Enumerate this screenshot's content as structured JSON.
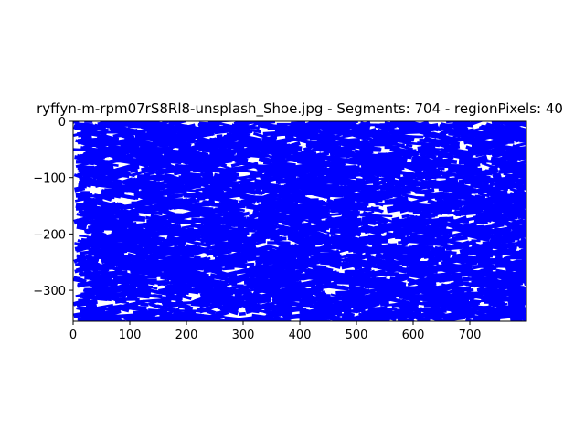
{
  "chart_data": {
    "type": "scatter",
    "title": "ryffyn-m-rpm07rS8Rl8-unsplash_Shoe.jpg - Segments: 704 - regionPixels: 40",
    "xlabel": "",
    "ylabel": "",
    "xlim": [
      0,
      800
    ],
    "ylim": [
      -355,
      0
    ],
    "x_ticks": [
      0,
      100,
      200,
      300,
      400,
      500,
      600,
      700
    ],
    "y_ticks": [
      0,
      -100,
      -200,
      -300
    ],
    "segment_count": 704,
    "segment_color": "#0000ff",
    "grid": false,
    "legend": "none"
  }
}
